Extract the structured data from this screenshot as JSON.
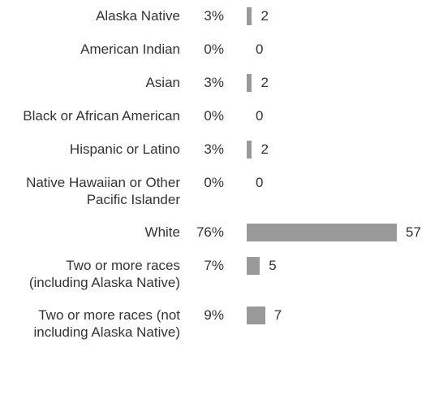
{
  "chart_data": {
    "type": "bar",
    "categories": [
      "Alaska Native",
      "American Indian",
      "Asian",
      "Black or African American",
      "Hispanic or Latino",
      "Native Hawaiian or Other Pacific Islander",
      "White",
      "Two or more races (including Alaska Native)",
      "Two or more races (not including Alaska Native)"
    ],
    "percent_labels": [
      "3%",
      "0%",
      "3%",
      "0%",
      "3%",
      "0%",
      "76%",
      "7%",
      "9%"
    ],
    "values": [
      2,
      0,
      2,
      0,
      2,
      0,
      57,
      5,
      7
    ],
    "color": "#999999"
  }
}
